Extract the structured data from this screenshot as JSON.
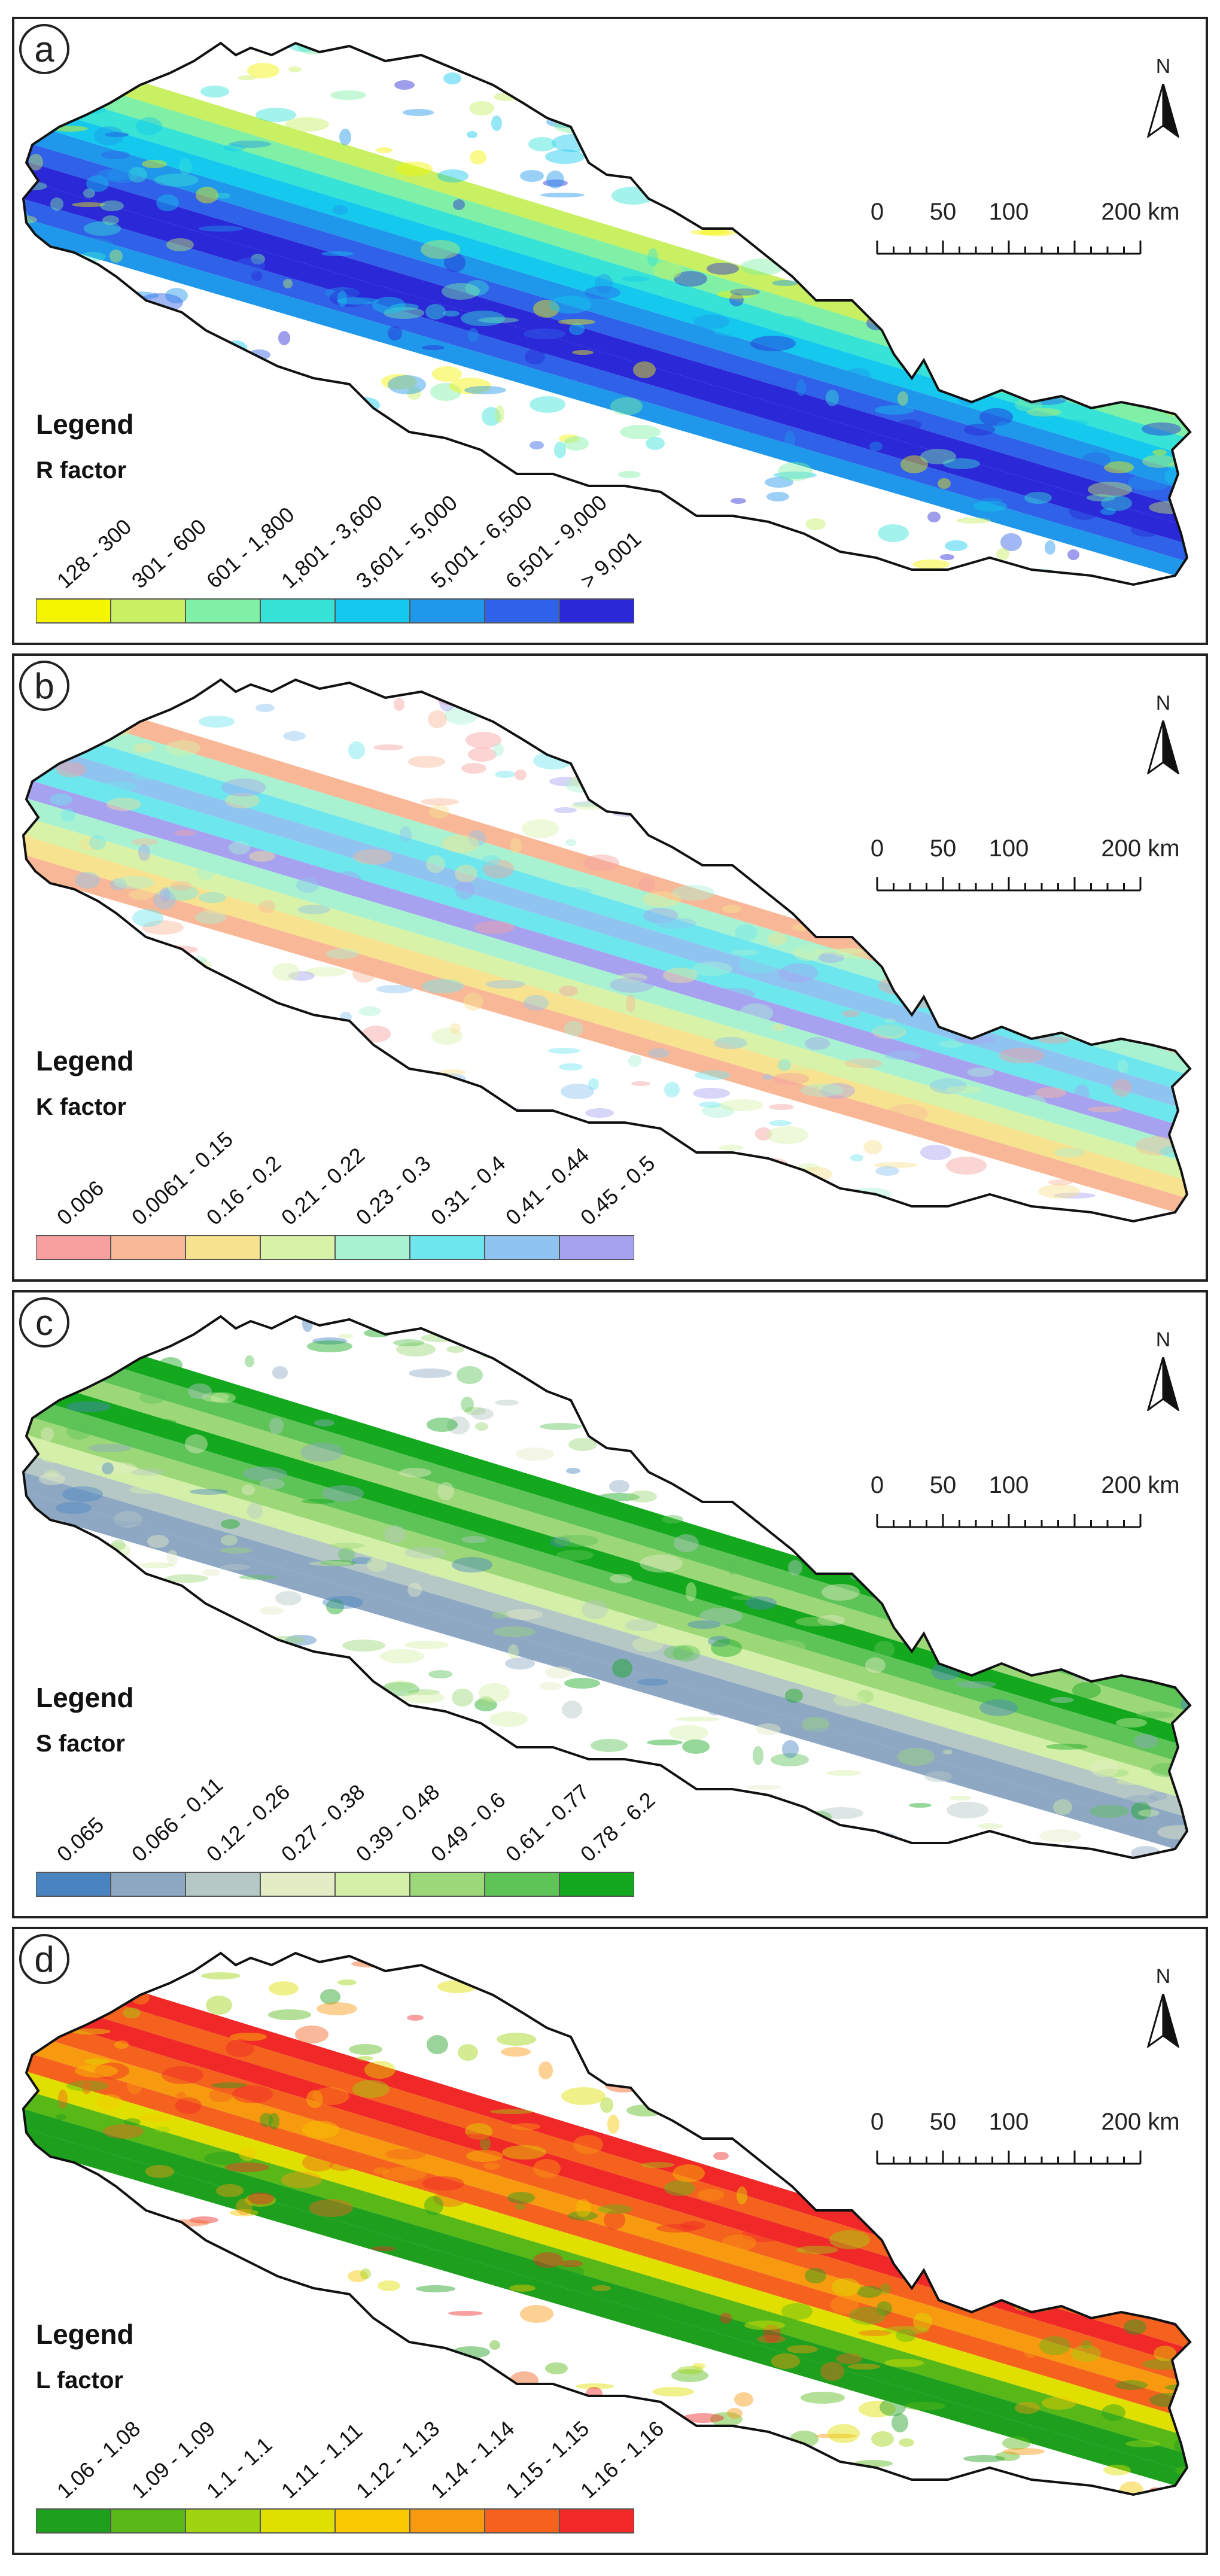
{
  "panels": [
    {
      "letter": "a",
      "legend_title": "Legend",
      "factor_label": "R factor",
      "classes": [
        "128 - 300",
        "301 - 600",
        "601 - 1,800",
        "1,801 - 3,600",
        "3,601 - 5,000",
        "5,001 - 6,500",
        "6,501 - 9,000",
        "> 9,001"
      ],
      "colors": [
        "#f5f500",
        "#c8f062",
        "#7ff0a5",
        "#36e3d6",
        "#14c8ee",
        "#1f97ea",
        "#2f62e8",
        "#2b28d8"
      ],
      "north_label": "N",
      "scale_labels": [
        "0",
        "50",
        "100",
        "200 km"
      ]
    },
    {
      "letter": "b",
      "legend_title": "Legend",
      "factor_label": "K factor",
      "classes": [
        "0.006",
        "0.0061 - 0.15",
        "0.16 - 0.2",
        "0.21 - 0.22",
        "0.23 - 0.3",
        "0.31 - 0.4",
        "0.41 - 0.44",
        "0.45 - 0.5"
      ],
      "colors": [
        "#f6a0a0",
        "#f8b898",
        "#f7e290",
        "#d8f2a8",
        "#a8f2d2",
        "#6ee6ee",
        "#8fc3f0",
        "#a6a2f0"
      ],
      "north_label": "N",
      "scale_labels": [
        "0",
        "50",
        "100",
        "200 km"
      ]
    },
    {
      "letter": "c",
      "legend_title": "Legend",
      "factor_label": "S factor",
      "classes": [
        "0.065",
        "0.066 - 0.11",
        "0.12 - 0.26",
        "0.27 - 0.38",
        "0.39 - 0.48",
        "0.49 - 0.6",
        "0.61 - 0.77",
        "0.78 - 6.2"
      ],
      "colors": [
        "#4a84c0",
        "#8ea8c4",
        "#b6c8c6",
        "#e4ecc6",
        "#d4f0a8",
        "#9cd878",
        "#5ec458",
        "#14a81e"
      ],
      "north_label": "N",
      "scale_labels": [
        "0",
        "50",
        "100",
        "200 km"
      ]
    },
    {
      "letter": "d",
      "legend_title": "Legend",
      "factor_label": "L factor",
      "classes": [
        "1.06 - 1.08",
        "1.09 - 1.09",
        "1.1 - 1.1",
        "1.11 - 1.11",
        "1.12 - 1.13",
        "1.14 - 1.14",
        "1.15 - 1.15",
        "1.16 - 1.16"
      ],
      "colors": [
        "#1ea01e",
        "#58b818",
        "#9ed410",
        "#e0e000",
        "#f8c800",
        "#f89a10",
        "#f4621e",
        "#f02828"
      ],
      "north_label": "N",
      "scale_labels": [
        "0",
        "50",
        "100",
        "200 km"
      ]
    }
  ]
}
